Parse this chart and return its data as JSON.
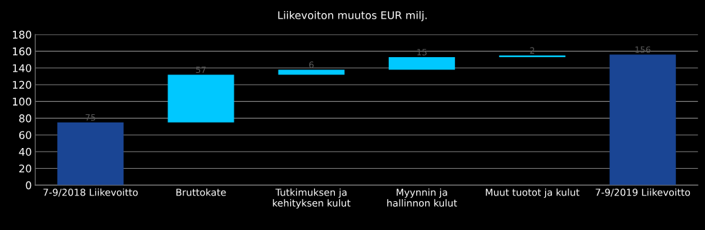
{
  "chart_data": {
    "type": "bar",
    "title": "Liikevoiton muutos EUR milj.",
    "categories": [
      "7-9/2018 Liikevoitto",
      "Bruttokate",
      "Tutkimuksen ja\nkehityksen kulut",
      "Myynnin ja\nhallinnon kulut",
      "Muut tuotot ja kulut",
      "7-9/2019 Liikevoitto"
    ],
    "values": [
      75,
      57,
      6,
      15,
      2,
      156
    ],
    "base": [
      0,
      75,
      132,
      138,
      153,
      0
    ],
    "colors": [
      "#1a4594",
      "#00c8ff",
      "#00c8ff",
      "#00c8ff",
      "#00c8ff",
      "#1a4594"
    ],
    "ylim": [
      0,
      180
    ],
    "yticks": [
      0,
      20,
      40,
      60,
      80,
      100,
      120,
      140,
      160,
      180
    ],
    "grid": "y",
    "data_labels": true
  }
}
